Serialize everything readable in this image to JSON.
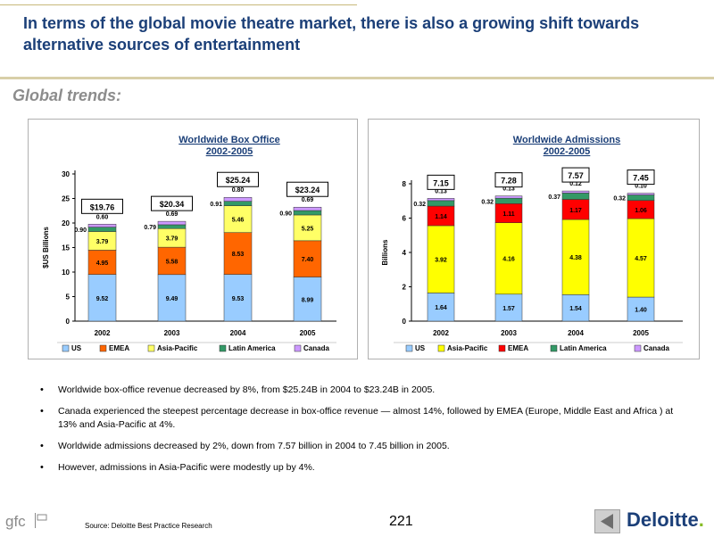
{
  "header": {
    "title": "In terms of the global movie theatre market, there is also a growing shift towards alternative sources of entertainment",
    "subtitle": "Global trends:"
  },
  "chart_data": [
    {
      "type": "bar",
      "stacked": true,
      "title": "Worldwide Box Office",
      "subtitle": "2002-2005",
      "ylabel": "$US Billions",
      "ylim": [
        0,
        30
      ],
      "yticks": [
        0,
        5,
        10,
        15,
        20,
        25,
        30
      ],
      "categories": [
        "2002",
        "2003",
        "2004",
        "2005"
      ],
      "totals": [
        "$19.76",
        "$20.34",
        "$25.24",
        "$23.24"
      ],
      "series": [
        {
          "name": "US",
          "color": "#99ccff",
          "values": [
            9.52,
            9.49,
            9.53,
            8.99
          ],
          "labels": [
            "9.52",
            "9.49",
            "9.53",
            "8.99"
          ]
        },
        {
          "name": "EMEA",
          "color": "#ff6600",
          "values": [
            4.95,
            5.58,
            8.53,
            7.4
          ],
          "labels": [
            "4.95",
            "5.58",
            "8.53",
            "7.40"
          ]
        },
        {
          "name": "Asia-Pacific",
          "color": "#ffff66",
          "values": [
            3.79,
            3.79,
            5.46,
            5.25
          ],
          "labels": [
            "3.79",
            "3.79",
            "5.46",
            "5.25"
          ]
        },
        {
          "name": "Latin America",
          "color": "#339966",
          "values": [
            0.9,
            0.79,
            0.91,
            0.9
          ],
          "labels": [
            "0.90",
            "0.79",
            "0.91",
            "0.90"
          ]
        },
        {
          "name": "Canada",
          "color": "#cc99ff",
          "values": [
            0.6,
            0.69,
            0.8,
            0.69
          ],
          "labels": [
            "0.60",
            "0.69",
            "0.80",
            "0.69"
          ]
        }
      ],
      "legend_position": "bottom",
      "grid": false
    },
    {
      "type": "bar",
      "stacked": true,
      "title": "Worldwide Admissions",
      "subtitle": "2002-2005",
      "ylabel": "Billions",
      "ylim": [
        0,
        8
      ],
      "yticks": [
        0,
        2,
        4,
        6,
        8
      ],
      "categories": [
        "2002",
        "2003",
        "2004",
        "2005"
      ],
      "totals": [
        "7.15",
        "7.28",
        "7.57",
        "7.45"
      ],
      "series": [
        {
          "name": "US",
          "color": "#99ccff",
          "values": [
            1.64,
            1.57,
            1.54,
            1.4
          ],
          "labels": [
            "1.64",
            "1.57",
            "1.54",
            "1.40"
          ]
        },
        {
          "name": "Asia-Pacific",
          "color": "#ffff00",
          "values": [
            3.92,
            4.16,
            4.38,
            4.57
          ],
          "labels": [
            "3.92",
            "4.16",
            "4.38",
            "4.57"
          ]
        },
        {
          "name": "EMEA",
          "color": "#ff0000",
          "values": [
            1.14,
            1.11,
            1.17,
            1.06
          ],
          "labels": [
            "1.14",
            "1.11",
            "1.17",
            "1.06"
          ]
        },
        {
          "name": "Latin America",
          "color": "#339966",
          "values": [
            0.32,
            0.32,
            0.37,
            0.32
          ],
          "labels": [
            "0.32",
            "0.32",
            "0.37",
            "0.32"
          ]
        },
        {
          "name": "Canada",
          "color": "#cc99ff",
          "values": [
            0.13,
            0.13,
            0.12,
            0.1
          ],
          "labels": [
            "0.13",
            "0.13",
            "0.12",
            "0.10"
          ]
        }
      ],
      "legend_position": "bottom",
      "grid": false
    }
  ],
  "bullets": [
    "Worldwide box-office revenue decreased by 8%, from $25.24B in 2004 to $23.24B in 2005.",
    "Canada experienced the steepest percentage decrease in box-office revenue — almost 14%, followed by EMEA (Europe, Middle East and Africa ) at 13% and Asia-Pacific at 4%.",
    "Worldwide admissions decreased by 2%, down from 7.57 billion in 2004 to 7.45 billion in 2005.",
    "However, admissions in Asia-Pacific were modestly up by 4%."
  ],
  "footer": {
    "logo_text": "gfc",
    "source": "Source: Deloitte Best Practice Research",
    "page_number": "221",
    "brand": "Deloitte",
    "brand_dot": ".",
    "back_icon": "back-arrow-icon",
    "brand_color": "#1b3f78",
    "accent_color": "#86bc25"
  }
}
